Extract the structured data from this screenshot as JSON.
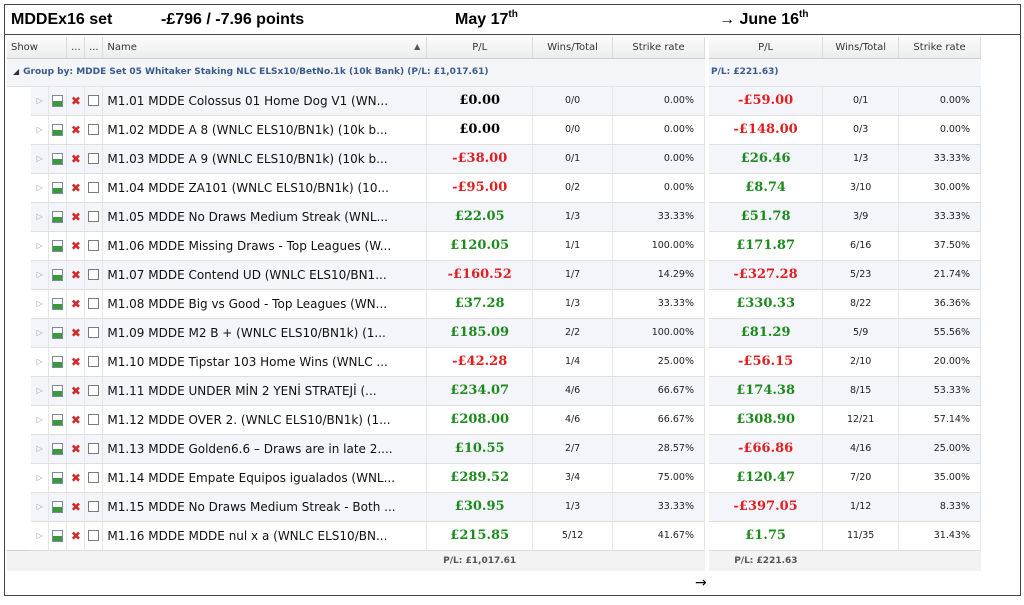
{
  "header": {
    "set_name": "MDDEx16 set",
    "result": "-£796 / -7.96 points",
    "date_left": "May 17",
    "date_left_sup": "th",
    "arrow": "→",
    "date_right": "June 16",
    "date_right_sup": "th"
  },
  "left_table": {
    "columns": {
      "show": "Show",
      "dots1": "...",
      "dots2": "...",
      "name": "Name",
      "pl": "P/L",
      "wins_total": "Wins/Total",
      "strike_rate": "Strike rate"
    },
    "sort_indicator": "▲",
    "group_label": "Group by: MDDE Set 05 Whitaker Staking NLC ELSx10/BetNo.1k  (10k Bank) (P/L: £1,017.61)",
    "footer_pl": "P/L: £1,017.61"
  },
  "right_table": {
    "columns": {
      "pl": "P/L",
      "wins_total": "Wins/Total",
      "strike_rate": "Strike rate"
    },
    "group_label": "P/L: £221.63)",
    "footer_pl": "P/L: £221.63"
  },
  "footer_arrow": "→",
  "icons": {
    "expand": "expand-triangle-icon",
    "doc": "system-doc-icon",
    "delete": "delete-x-icon",
    "checkbox": "checkbox-icon"
  },
  "colors": {
    "positive": "#1d8a1d",
    "negative": "#e02020",
    "group_text": "#3b5a8c"
  },
  "rows": [
    {
      "name": "M1.01 MDDE Colossus 01 Home Dog V1 (WN...",
      "pl_left": "£0.00",
      "pl_left_sign": "zero",
      "wt_left": "0/0",
      "sr_left": "0.00%",
      "pl_right": "-£59.00",
      "pl_right_sign": "neg",
      "wt_right": "0/1",
      "sr_right": "0.00%"
    },
    {
      "name": "M1.02 MDDE A 8 (WNLC ELS10/BN1k) (10k b...",
      "pl_left": "£0.00",
      "pl_left_sign": "zero",
      "wt_left": "0/0",
      "sr_left": "0.00%",
      "pl_right": "-£148.00",
      "pl_right_sign": "neg",
      "wt_right": "0/3",
      "sr_right": "0.00%"
    },
    {
      "name": "M1.03 MDDE A 9 (WNLC ELS10/BN1k) (10k b...",
      "pl_left": "-£38.00",
      "pl_left_sign": "neg",
      "wt_left": "0/1",
      "sr_left": "0.00%",
      "pl_right": "£26.46",
      "pl_right_sign": "pos",
      "wt_right": "1/3",
      "sr_right": "33.33%"
    },
    {
      "name": "M1.04 MDDE ZA101 (WNLC ELS10/BN1k) (10...",
      "pl_left": "-£95.00",
      "pl_left_sign": "neg",
      "wt_left": "0/2",
      "sr_left": "0.00%",
      "pl_right": "£8.74",
      "pl_right_sign": "pos",
      "wt_right": "3/10",
      "sr_right": "30.00%"
    },
    {
      "name": "M1.05 MDDE No Draws Medium Streak (WNL...",
      "pl_left": "£22.05",
      "pl_left_sign": "pos",
      "wt_left": "1/3",
      "sr_left": "33.33%",
      "pl_right": "£51.78",
      "pl_right_sign": "pos",
      "wt_right": "3/9",
      "sr_right": "33.33%"
    },
    {
      "name": "M1.06 MDDE Missing Draws - Top Leagues (W...",
      "pl_left": "£120.05",
      "pl_left_sign": "pos",
      "wt_left": "1/1",
      "sr_left": "100.00%",
      "pl_right": "£171.87",
      "pl_right_sign": "pos",
      "wt_right": "6/16",
      "sr_right": "37.50%"
    },
    {
      "name": "M1.07 MDDE Contend UD (WNLC ELS10/BN1...",
      "pl_left": "-£160.52",
      "pl_left_sign": "neg",
      "wt_left": "1/7",
      "sr_left": "14.29%",
      "pl_right": "-£327.28",
      "pl_right_sign": "neg",
      "wt_right": "5/23",
      "sr_right": "21.74%"
    },
    {
      "name": "M1.08 MDDE Big vs Good - Top Leagues (WN...",
      "pl_left": "£37.28",
      "pl_left_sign": "pos",
      "wt_left": "1/3",
      "sr_left": "33.33%",
      "pl_right": "£330.33",
      "pl_right_sign": "pos",
      "wt_right": "8/22",
      "sr_right": "36.36%"
    },
    {
      "name": "M1.09 MDDE M2 B + (WNLC ELS10/BN1k) (1...",
      "pl_left": "£185.09",
      "pl_left_sign": "pos",
      "wt_left": "2/2",
      "sr_left": "100.00%",
      "pl_right": "£81.29",
      "pl_right_sign": "pos",
      "wt_right": "5/9",
      "sr_right": "55.56%"
    },
    {
      "name": "M1.10 MDDE Tipstar 103 Home Wins (WNLC ...",
      "pl_left": "-£42.28",
      "pl_left_sign": "neg",
      "wt_left": "1/4",
      "sr_left": "25.00%",
      "pl_right": "-£56.15",
      "pl_right_sign": "neg",
      "wt_right": "2/10",
      "sr_right": "20.00%"
    },
    {
      "name": "M1.11 MDDE UNDER MİN 2 YENİ STRATEJİ (...",
      "pl_left": "£234.07",
      "pl_left_sign": "pos",
      "wt_left": "4/6",
      "sr_left": "66.67%",
      "pl_right": "£174.38",
      "pl_right_sign": "pos",
      "wt_right": "8/15",
      "sr_right": "53.33%"
    },
    {
      "name": "M1.12 MDDE OVER 2. (WNLC ELS10/BN1k) (1...",
      "pl_left": "£208.00",
      "pl_left_sign": "pos",
      "wt_left": "4/6",
      "sr_left": "66.67%",
      "pl_right": "£308.90",
      "pl_right_sign": "pos",
      "wt_right": "12/21",
      "sr_right": "57.14%"
    },
    {
      "name": "M1.13 MDDE Golden6.6 – Draws are in late 2....",
      "pl_left": "£10.55",
      "pl_left_sign": "pos",
      "wt_left": "2/7",
      "sr_left": "28.57%",
      "pl_right": "-£66.86",
      "pl_right_sign": "neg",
      "wt_right": "4/16",
      "sr_right": "25.00%"
    },
    {
      "name": "M1.14 MDDE Empate Equipos igualados (WNL...",
      "pl_left": "£289.52",
      "pl_left_sign": "pos",
      "wt_left": "3/4",
      "sr_left": "75.00%",
      "pl_right": "£120.47",
      "pl_right_sign": "pos",
      "wt_right": "7/20",
      "sr_right": "35.00%"
    },
    {
      "name": "M1.15 MDDE No Draws Medium Streak - Both ...",
      "pl_left": "£30.95",
      "pl_left_sign": "pos",
      "wt_left": "1/3",
      "sr_left": "33.33%",
      "pl_right": "-£397.05",
      "pl_right_sign": "neg",
      "wt_right": "1/12",
      "sr_right": "8.33%"
    },
    {
      "name": "M1.16 MDDE MDDE nul x a (WNLC ELS10/BN...",
      "pl_left": "£215.85",
      "pl_left_sign": "pos",
      "wt_left": "5/12",
      "sr_left": "41.67%",
      "pl_right": "£1.75",
      "pl_right_sign": "pos",
      "wt_right": "11/35",
      "sr_right": "31.43%"
    }
  ]
}
